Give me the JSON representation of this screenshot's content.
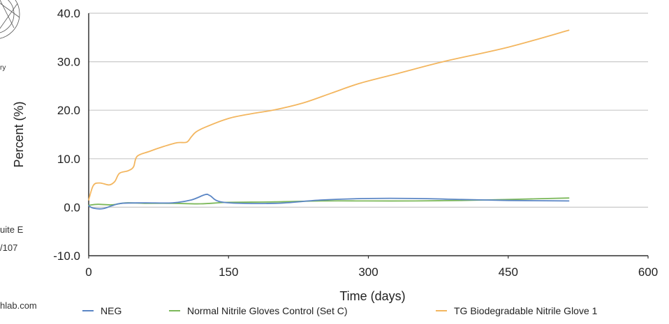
{
  "left_fragments": {
    "fragment_1": "ry",
    "fragment_2": "uite E",
    "fragment_3": "/107",
    "fragment_4": "hlab.com"
  },
  "chart_data": {
    "type": "line",
    "title": "",
    "xlabel": "Time (days)",
    "ylabel": "Percent (%)",
    "xlim": [
      0,
      600
    ],
    "ylim": [
      -10,
      40
    ],
    "x_ticks": [
      "0",
      "150",
      "300",
      "450",
      "600"
    ],
    "y_ticks": [
      "40.0",
      "30.0",
      "20.0",
      "10.0",
      "0.0",
      "-10.0"
    ],
    "grid": "horizontal",
    "legend_position": "bottom",
    "colors": {
      "NEG": "#5b86c5",
      "Normal Nitrile Gloves Control (Set C)": "#7cb85a",
      "TG Biodegradable Nitrile Glove 1": "#f3b65f"
    },
    "series": [
      {
        "name": "NEG",
        "x": [
          0,
          5,
          15,
          25,
          35,
          60,
          90,
          110,
          125,
          130,
          145,
          200,
          250,
          300,
          350,
          400,
          450,
          515
        ],
        "y": [
          0.3,
          -0.2,
          -0.3,
          0.3,
          0.8,
          0.9,
          0.9,
          1.5,
          2.6,
          2.4,
          1.0,
          0.8,
          1.5,
          1.8,
          1.8,
          1.6,
          1.4,
          1.3
        ]
      },
      {
        "name": "Normal Nitrile Gloves Control (Set C)",
        "x": [
          0,
          10,
          25,
          40,
          60,
          90,
          120,
          150,
          200,
          250,
          300,
          350,
          400,
          450,
          515
        ],
        "y": [
          0.4,
          0.6,
          0.5,
          0.9,
          0.8,
          0.8,
          0.7,
          1.0,
          1.1,
          1.3,
          1.3,
          1.3,
          1.4,
          1.6,
          1.9
        ]
      },
      {
        "name": "TG Biodegradable Nitrile Glove 1",
        "x": [
          0,
          5,
          12,
          22,
          28,
          33,
          42,
          48,
          52,
          65,
          80,
          95,
          105,
          110,
          115,
          125,
          150,
          175,
          200,
          230,
          260,
          290,
          330,
          380,
          450,
          515
        ],
        "y": [
          1.5,
          4.5,
          5.0,
          4.6,
          5.3,
          7.0,
          7.5,
          8.3,
          10.5,
          11.5,
          12.5,
          13.3,
          13.4,
          14.5,
          15.5,
          16.5,
          18.3,
          19.3,
          20.1,
          21.5,
          23.5,
          25.5,
          27.5,
          30.0,
          33.0,
          36.5
        ]
      }
    ]
  }
}
